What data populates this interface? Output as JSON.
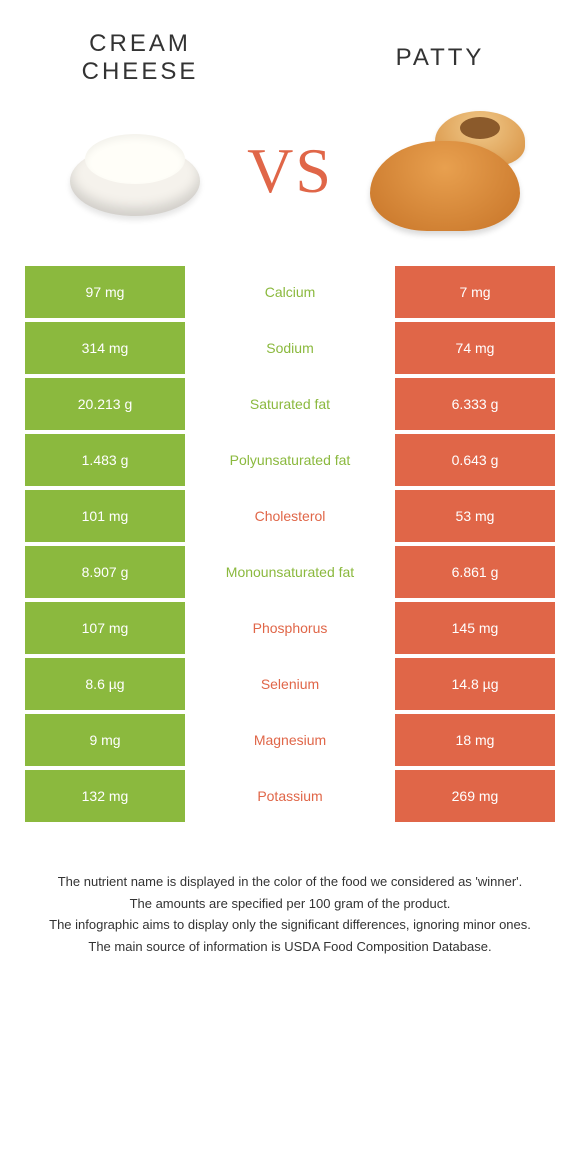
{
  "header": {
    "left_title": "CREAM CHEESE",
    "right_title": "PATTY",
    "vs": "VS"
  },
  "colors": {
    "green": "#8bb93e",
    "orange": "#e06648",
    "row_gap_bg": "#ffffff",
    "text_dark": "#333333"
  },
  "table": {
    "rows": [
      {
        "left": "97 mg",
        "label": "Calcium",
        "right": "7 mg",
        "winner": "green"
      },
      {
        "left": "314 mg",
        "label": "Sodium",
        "right": "74 mg",
        "winner": "green"
      },
      {
        "left": "20.213 g",
        "label": "Saturated fat",
        "right": "6.333 g",
        "winner": "green"
      },
      {
        "left": "1.483 g",
        "label": "Polyunsaturated fat",
        "right": "0.643 g",
        "winner": "green"
      },
      {
        "left": "101 mg",
        "label": "Cholesterol",
        "right": "53 mg",
        "winner": "orange"
      },
      {
        "left": "8.907 g",
        "label": "Monounsaturated fat",
        "right": "6.861 g",
        "winner": "green"
      },
      {
        "left": "107 mg",
        "label": "Phosphorus",
        "right": "145 mg",
        "winner": "orange"
      },
      {
        "left": "8.6 µg",
        "label": "Selenium",
        "right": "14.8 µg",
        "winner": "orange"
      },
      {
        "left": "9 mg",
        "label": "Magnesium",
        "right": "18 mg",
        "winner": "orange"
      },
      {
        "left": "132 mg",
        "label": "Potassium",
        "right": "269 mg",
        "winner": "orange"
      }
    ]
  },
  "notes": {
    "line1": "The nutrient name is displayed in the color of the food we considered as 'winner'.",
    "line2": "The amounts are specified per 100 gram of the product.",
    "line3": "The infographic aims to display only the significant differences, ignoring minor ones.",
    "line4": "The main source of information is USDA Food Composition Database."
  }
}
